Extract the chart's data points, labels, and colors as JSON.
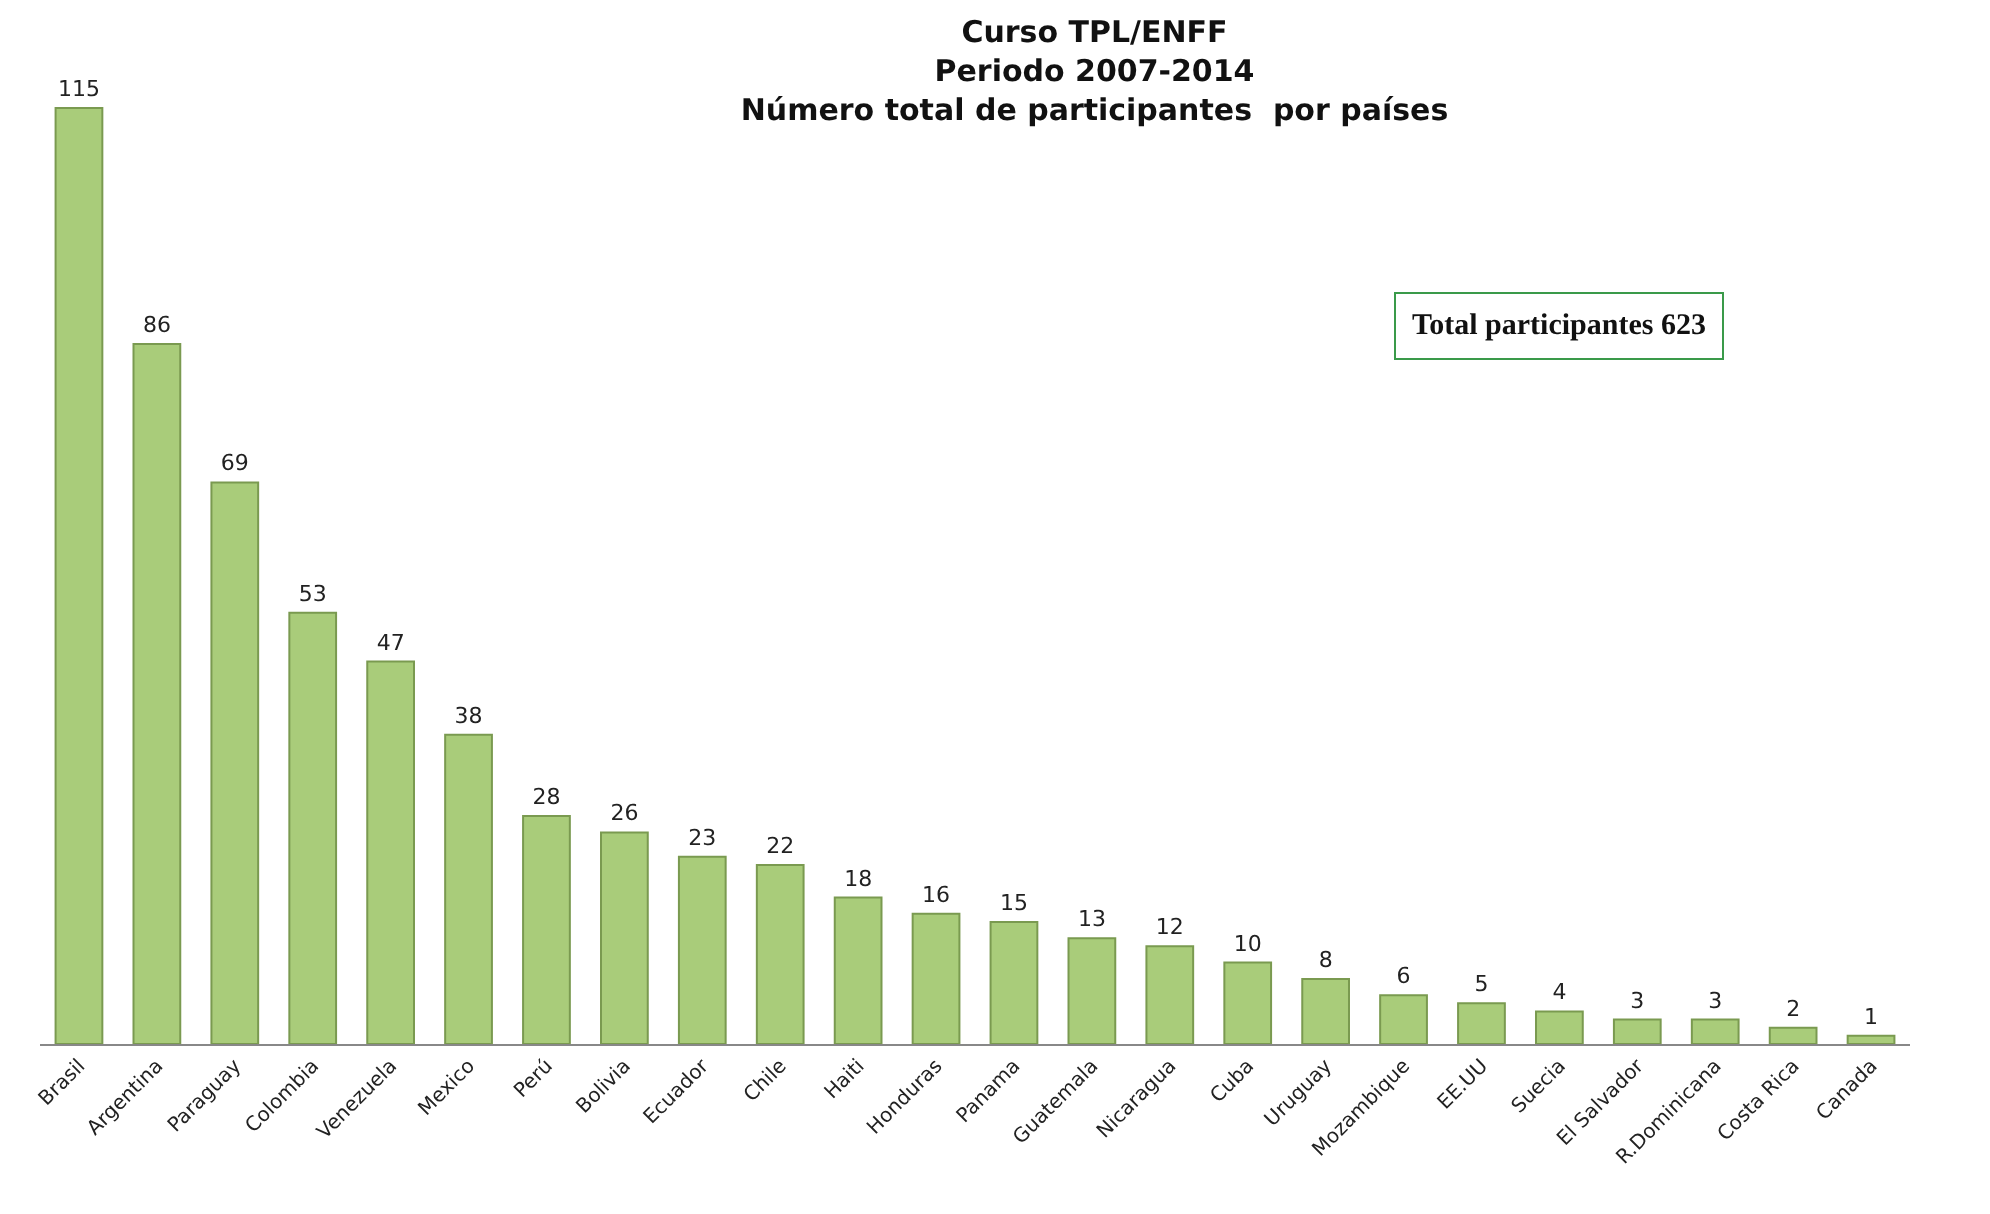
{
  "chart_data": {
    "type": "bar",
    "title": "Curso TPL/ENFF\nPeriodo 2007-2014\nNúmero total de participantes  por países",
    "categories": [
      "Brasil",
      "Argentina",
      "Paraguay",
      "Colombia",
      "Venezuela",
      "Mexico",
      "Perú",
      "Bolivia",
      "Ecuador",
      "Chile",
      "Haiti",
      "Honduras",
      "Panama",
      "Guatemala",
      "Nicaragua",
      "Cuba",
      "Uruguay",
      "Mozambique",
      "EE.UU",
      "Suecia",
      "El Salvador",
      "R.Dominicana",
      "Costa Rica",
      "Canada"
    ],
    "values": [
      115,
      86,
      69,
      53,
      47,
      38,
      28,
      26,
      23,
      22,
      18,
      16,
      15,
      13,
      12,
      10,
      8,
      6,
      5,
      4,
      3,
      3,
      2,
      1
    ],
    "color": "#a9cc7a",
    "data_labels": true,
    "legend": false,
    "tick_labels": "x",
    "annotations": [
      "Total participantes 623"
    ]
  }
}
